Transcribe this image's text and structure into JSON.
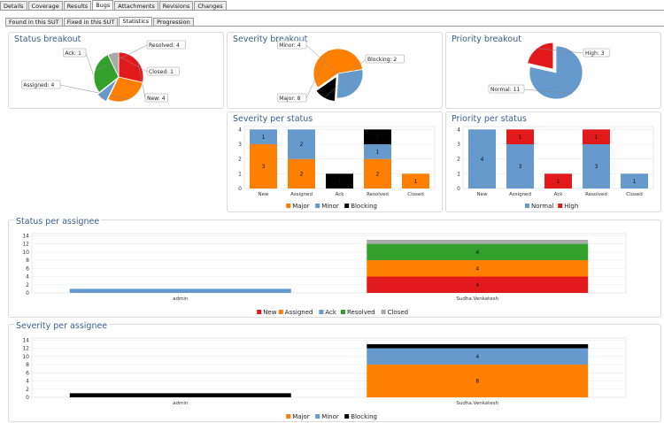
{
  "tabs": [
    {
      "label": "Details",
      "active": false
    },
    {
      "label": "Coverage",
      "active": false
    },
    {
      "label": "Results",
      "active": false
    },
    {
      "label": "Bugs",
      "active": true
    },
    {
      "label": "Attachments",
      "active": false
    },
    {
      "label": "Revisions",
      "active": false
    },
    {
      "label": "Changes",
      "active": false
    }
  ],
  "subtabs": [
    {
      "label": "Found in this SUT",
      "active": false
    },
    {
      "label": "Fixed in this SUT",
      "active": false
    },
    {
      "label": "Statistics",
      "active": true
    },
    {
      "label": "Progression",
      "active": false
    }
  ],
  "colors": {
    "new": "#e31a1c",
    "assigned": "#ff7f00",
    "ack": "#6699cc",
    "resolved": "#33a02c",
    "closed": "#aaaaaa",
    "major": "#ff7f00",
    "minor": "#6699cc",
    "blocking": "#000000",
    "normal": "#6699cc",
    "high": "#e31a1c"
  },
  "chart_data": [
    {
      "id": "status_breakout",
      "type": "pie",
      "title": "Status breakout",
      "slices": [
        {
          "label": "New",
          "value": 4,
          "color_key": "new",
          "tag": "New: 4"
        },
        {
          "label": "Assigned",
          "value": 4,
          "color_key": "assigned",
          "tag": "Assigned: 4"
        },
        {
          "label": "Ack",
          "value": 1,
          "color_key": "ack",
          "tag": "Ack: 1"
        },
        {
          "label": "Resolved",
          "value": 4,
          "color_key": "resolved",
          "tag": "Resolved: 4"
        },
        {
          "label": "Closed",
          "value": 1,
          "color_key": "closed",
          "tag": "Closed: 1"
        }
      ]
    },
    {
      "id": "severity_breakout",
      "type": "pie",
      "title": "Severity breakout",
      "slices": [
        {
          "label": "Major",
          "value": 8,
          "color_key": "major",
          "tag": "Major: 8"
        },
        {
          "label": "Minor",
          "value": 4,
          "color_key": "minor",
          "tag": "Minor: 4"
        },
        {
          "label": "Blocking",
          "value": 2,
          "color_key": "blocking",
          "tag": "Blocking: 2"
        }
      ]
    },
    {
      "id": "priority_breakout",
      "type": "pie",
      "title": "Priority breakout",
      "slices": [
        {
          "label": "Normal",
          "value": 11,
          "color_key": "normal",
          "tag": "Normal: 11"
        },
        {
          "label": "High",
          "value": 3,
          "color_key": "high",
          "tag": "High: 3"
        }
      ]
    },
    {
      "id": "severity_per_status",
      "type": "bar",
      "stacked": true,
      "title": "Severity per status",
      "categories": [
        "New",
        "Assigned",
        "Ack",
        "Resolved",
        "Closed"
      ],
      "series": [
        {
          "name": "Major",
          "color_key": "major",
          "values": [
            3,
            2,
            0,
            2,
            1
          ]
        },
        {
          "name": "Minor",
          "color_key": "minor",
          "values": [
            1,
            2,
            0,
            1,
            0
          ]
        },
        {
          "name": "Blocking",
          "color_key": "blocking",
          "values": [
            0,
            0,
            1,
            1,
            0
          ]
        }
      ],
      "yticks": [
        0,
        1,
        2,
        3,
        4
      ],
      "ylim": [
        0,
        4.2
      ],
      "legend": "bottom"
    },
    {
      "id": "priority_per_status",
      "type": "bar",
      "stacked": true,
      "title": "Priority per status",
      "categories": [
        "New",
        "Assigned",
        "Ack",
        "Resolved",
        "Closed"
      ],
      "series": [
        {
          "name": "Normal",
          "color_key": "normal",
          "values": [
            4,
            3,
            0,
            3,
            1
          ]
        },
        {
          "name": "High",
          "color_key": "high",
          "values": [
            0,
            1,
            1,
            1,
            0
          ]
        }
      ],
      "yticks": [
        0,
        1,
        2,
        3,
        4
      ],
      "ylim": [
        0,
        4.2
      ],
      "legend": "bottom"
    },
    {
      "id": "status_per_assignee",
      "type": "bar",
      "stacked": true,
      "title": "Status per assignee",
      "categories": [
        "admin",
        "Sudha.Venkatesh"
      ],
      "series": [
        {
          "name": "New",
          "color_key": "new",
          "values": [
            0,
            4
          ]
        },
        {
          "name": "Assigned",
          "color_key": "assigned",
          "values": [
            0,
            4
          ]
        },
        {
          "name": "Ack",
          "color_key": "ack",
          "values": [
            1,
            0
          ]
        },
        {
          "name": "Resolved",
          "color_key": "resolved",
          "values": [
            0,
            4
          ]
        },
        {
          "name": "Closed",
          "color_key": "closed",
          "values": [
            0,
            1
          ]
        }
      ],
      "yticks": [
        0,
        2,
        4,
        6,
        8,
        10,
        12,
        14
      ],
      "ylim": [
        0,
        14.5
      ],
      "legend": "bottom"
    },
    {
      "id": "severity_per_assignee",
      "type": "bar",
      "stacked": true,
      "title": "Severity per assignee",
      "categories": [
        "admin",
        "Sudha.Venkatesh"
      ],
      "series": [
        {
          "name": "Major",
          "color_key": "major",
          "values": [
            0,
            8
          ]
        },
        {
          "name": "Minor",
          "color_key": "minor",
          "values": [
            0,
            4
          ]
        },
        {
          "name": "Blocking",
          "color_key": "blocking",
          "values": [
            1,
            1
          ]
        }
      ],
      "yticks": [
        0,
        2,
        4,
        6,
        8,
        10,
        12,
        14
      ],
      "ylim": [
        0,
        14.5
      ],
      "legend": "bottom"
    }
  ]
}
